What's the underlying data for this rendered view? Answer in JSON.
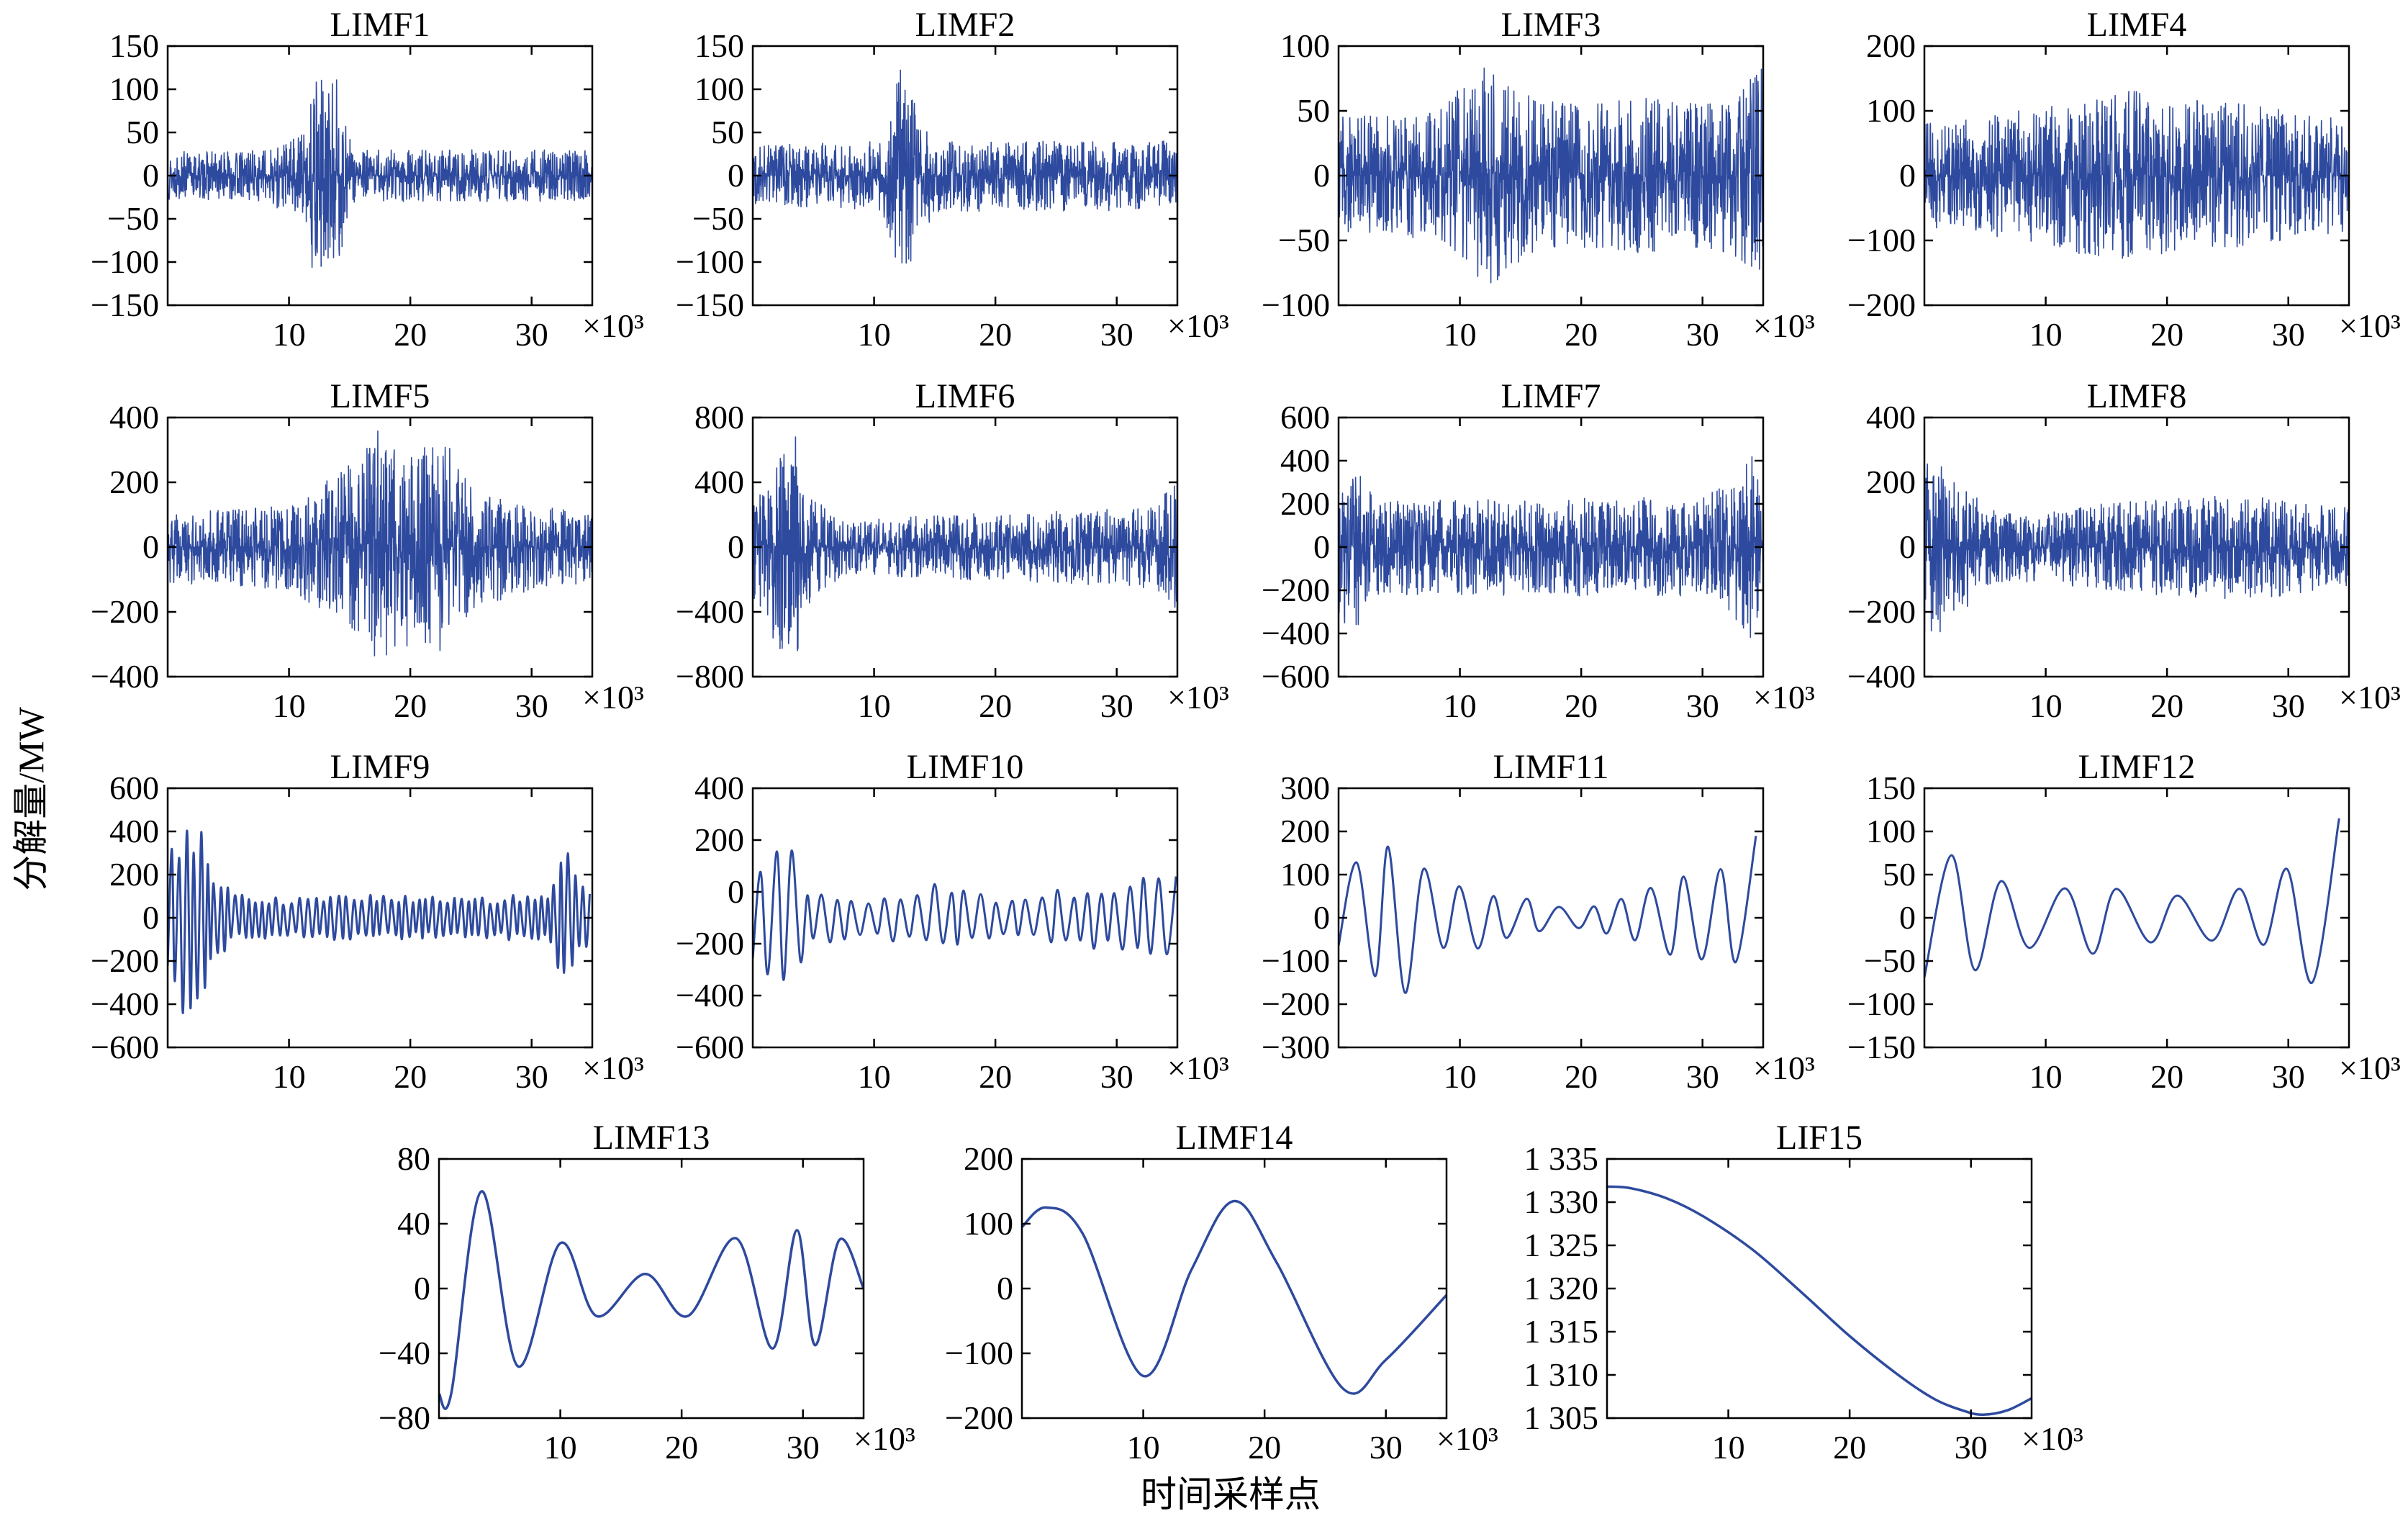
{
  "figure": {
    "ylabel": "分解量/MW",
    "xlabel": "时间采样点",
    "series_color": "#2e4a9e"
  },
  "chart_data": [
    {
      "type": "line",
      "title": "LIMF1",
      "x_range": [
        0,
        35000
      ],
      "ylim": [
        -150,
        150
      ],
      "yticks": [
        "150",
        "100",
        "50",
        "0",
        "−50",
        "−100",
        "−150"
      ],
      "xticks": [
        "10",
        "20",
        "30"
      ],
      "x_multiplier": "×10³",
      "signal": "noise",
      "envelope": [
        [
          0,
          28
        ],
        [
          8000,
          30
        ],
        [
          11500,
          55
        ],
        [
          12000,
          125
        ],
        [
          13000,
          110
        ],
        [
          14000,
          130
        ],
        [
          14600,
          60
        ],
        [
          15500,
          30
        ],
        [
          35000,
          30
        ]
      ]
    },
    {
      "type": "line",
      "title": "LIMF2",
      "x_range": [
        0,
        35000
      ],
      "ylim": [
        -150,
        150
      ],
      "yticks": [
        "150",
        "100",
        "50",
        "0",
        "−50",
        "−100",
        "−150"
      ],
      "xticks": [
        "10",
        "20",
        "30"
      ],
      "x_multiplier": "×10³",
      "signal": "noise",
      "envelope": [
        [
          0,
          35
        ],
        [
          10500,
          40
        ],
        [
          11500,
          80
        ],
        [
          12000,
          128
        ],
        [
          13000,
          100
        ],
        [
          14000,
          70
        ],
        [
          15000,
          42
        ],
        [
          35000,
          40
        ]
      ]
    },
    {
      "type": "line",
      "title": "LIMF3",
      "x_range": [
        0,
        35000
      ],
      "ylim": [
        -100,
        100
      ],
      "yticks": [
        "100",
        "50",
        "0",
        "−50",
        "−100"
      ],
      "xticks": [
        "10",
        "20",
        "30"
      ],
      "x_multiplier": "×10³",
      "signal": "noise",
      "envelope": [
        [
          0,
          45
        ],
        [
          8000,
          50
        ],
        [
          11500,
          80
        ],
        [
          12500,
          90
        ],
        [
          14000,
          75
        ],
        [
          16000,
          60
        ],
        [
          20000,
          55
        ],
        [
          25000,
          60
        ],
        [
          30000,
          55
        ],
        [
          33000,
          65
        ],
        [
          35000,
          90
        ]
      ]
    },
    {
      "type": "line",
      "title": "LIMF4",
      "x_range": [
        0,
        35000
      ],
      "ylim": [
        -200,
        200
      ],
      "yticks": [
        "200",
        "100",
        "0",
        "−100",
        "−200"
      ],
      "xticks": [
        "10",
        "20",
        "30"
      ],
      "x_multiplier": "×10³",
      "signal": "noise",
      "envelope": [
        [
          0,
          80
        ],
        [
          5000,
          90
        ],
        [
          10000,
          110
        ],
        [
          14000,
          125
        ],
        [
          17000,
          135
        ],
        [
          20000,
          120
        ],
        [
          25000,
          115
        ],
        [
          30000,
          100
        ],
        [
          35000,
          85
        ]
      ]
    },
    {
      "type": "line",
      "title": "LIMF5",
      "x_range": [
        0,
        35000
      ],
      "ylim": [
        -400,
        400
      ],
      "yticks": [
        "400",
        "200",
        "0",
        "−200",
        "−400"
      ],
      "xticks": [
        "10",
        "20",
        "30"
      ],
      "x_multiplier": "×10³",
      "signal": "noise",
      "envelope": [
        [
          0,
          110
        ],
        [
          10000,
          130
        ],
        [
          15000,
          260
        ],
        [
          17000,
          370
        ],
        [
          19000,
          300
        ],
        [
          23000,
          330
        ],
        [
          25000,
          200
        ],
        [
          30000,
          130
        ],
        [
          35000,
          110
        ]
      ]
    },
    {
      "type": "line",
      "title": "LIMF6",
      "x_range": [
        0,
        35000
      ],
      "ylim": [
        -800,
        800
      ],
      "yticks": [
        "800",
        "400",
        "0",
        "−400",
        "−800"
      ],
      "xticks": [
        "10",
        "20",
        "30"
      ],
      "x_multiplier": "×10³",
      "signal": "noise",
      "envelope": [
        [
          0,
          300
        ],
        [
          1500,
          650
        ],
        [
          3500,
          700
        ],
        [
          5000,
          300
        ],
        [
          8000,
          160
        ],
        [
          15000,
          200
        ],
        [
          25000,
          220
        ],
        [
          33000,
          260
        ],
        [
          35000,
          400
        ]
      ]
    },
    {
      "type": "line",
      "title": "LIMF7",
      "x_range": [
        0,
        35000
      ],
      "ylim": [
        -600,
        600
      ],
      "yticks": [
        "600",
        "400",
        "200",
        "0",
        "−200",
        "−400",
        "−600"
      ],
      "xticks": [
        "10",
        "20",
        "30"
      ],
      "x_multiplier": "×10³",
      "signal": "noise",
      "envelope": [
        [
          0,
          350
        ],
        [
          1500,
          380
        ],
        [
          3000,
          220
        ],
        [
          10000,
          220
        ],
        [
          20000,
          230
        ],
        [
          30000,
          230
        ],
        [
          32000,
          300
        ],
        [
          34000,
          460
        ],
        [
          35000,
          300
        ]
      ]
    },
    {
      "type": "line",
      "title": "LIMF8",
      "x_range": [
        0,
        35000
      ],
      "ylim": [
        -400,
        400
      ],
      "yticks": [
        "400",
        "200",
        "0",
        "−200",
        "−400"
      ],
      "xticks": [
        "10",
        "20",
        "30"
      ],
      "x_multiplier": "×10³",
      "signal": "noise",
      "envelope": [
        [
          0,
          260
        ],
        [
          1000,
          280
        ],
        [
          3000,
          200
        ],
        [
          6000,
          110
        ],
        [
          10000,
          110
        ],
        [
          15000,
          140
        ],
        [
          20000,
          150
        ],
        [
          25000,
          160
        ],
        [
          30000,
          150
        ],
        [
          35000,
          120
        ]
      ]
    },
    {
      "type": "line",
      "title": "LIMF9",
      "x_range": [
        0,
        35000
      ],
      "ylim": [
        -600,
        600
      ],
      "yticks": [
        "600",
        "400",
        "200",
        "0",
        "−200",
        "−400",
        "−600"
      ],
      "xticks": [
        "10",
        "20",
        "30"
      ],
      "x_multiplier": "×10³",
      "signal": "oscillation",
      "sep": 300,
      "envelope": [
        [
          0,
          300
        ],
        [
          1500,
          480
        ],
        [
          2500,
          450
        ],
        [
          4000,
          180
        ],
        [
          6000,
          110
        ],
        [
          10000,
          90
        ],
        [
          16000,
          110
        ],
        [
          25000,
          90
        ],
        [
          31500,
          120
        ],
        [
          32500,
          370
        ],
        [
          34000,
          180
        ],
        [
          35000,
          120
        ]
      ]
    },
    {
      "type": "line",
      "title": "LIMF10",
      "x_range": [
        0,
        35000
      ],
      "ylim": [
        -600,
        600
      ],
      "yticks": [
        "400",
        "200",
        "0",
        "−200",
        "−400",
        "−600"
      ],
      "xticks": [
        "10",
        "20",
        "30"
      ],
      "x_multiplier": "×10³",
      "signal": "oscillation",
      "sep": 620,
      "envelope": [
        [
          0,
          240
        ],
        [
          2000,
          350
        ],
        [
          3000,
          450
        ],
        [
          4500,
          150
        ],
        [
          10000,
          90
        ],
        [
          16000,
          170
        ],
        [
          20000,
          100
        ],
        [
          30000,
          160
        ],
        [
          33000,
          200
        ],
        [
          35000,
          250
        ]
      ]
    },
    {
      "type": "line",
      "title": "LIMF11",
      "x_range": [
        0,
        35000
      ],
      "ylim": [
        -300,
        300
      ],
      "yticks": [
        "300",
        "200",
        "100",
        "0",
        "−100",
        "−200",
        "−300"
      ],
      "xticks": [
        "10",
        "20",
        "30"
      ],
      "x_multiplier": "×10³",
      "signal": "oscillation",
      "sep": 1350,
      "envelope": [
        [
          0,
          80
        ],
        [
          3500,
          210
        ],
        [
          5000,
          200
        ],
        [
          8000,
          90
        ],
        [
          12000,
          70
        ],
        [
          19000,
          20
        ],
        [
          25000,
          70
        ],
        [
          30000,
          110
        ],
        [
          33000,
          150
        ],
        [
          35000,
          215
        ]
      ]
    },
    {
      "type": "line",
      "title": "LIMF12",
      "x_range": [
        0,
        35000
      ],
      "ylim": [
        -150,
        150
      ],
      "yticks": [
        "150",
        "100",
        "50",
        "0",
        "−50",
        "−100",
        "−150"
      ],
      "xticks": [
        "10",
        "20",
        "30"
      ],
      "x_multiplier": "×10³",
      "signal": "oscillation",
      "sep": 2400,
      "envelope": [
        [
          0,
          70
        ],
        [
          3000,
          75
        ],
        [
          8000,
          45
        ],
        [
          15000,
          45
        ],
        [
          22000,
          35
        ],
        [
          28000,
          40
        ],
        [
          32000,
          90
        ],
        [
          35000,
          130
        ]
      ]
    },
    {
      "type": "line",
      "title": "LIMF13",
      "x_range": [
        0,
        35000
      ],
      "ylim": [
        -80,
        80
      ],
      "yticks": [
        "80",
        "40",
        "0",
        "−40",
        "−80"
      ],
      "xticks": [
        "10",
        "20",
        "30"
      ],
      "x_multiplier": "×10³",
      "signal": "points",
      "x": [
        0,
        1000,
        3500,
        6500,
        10000,
        13000,
        17000,
        20500,
        24500,
        27500,
        29500,
        31000,
        33000,
        35000
      ],
      "y": [
        -65,
        -65,
        60,
        -48,
        28,
        -17,
        9,
        -17,
        31,
        -37,
        36,
        -35,
        30,
        0
      ]
    },
    {
      "type": "line",
      "title": "LIMF14",
      "x_range": [
        0,
        35000
      ],
      "ylim": [
        -200,
        200
      ],
      "yticks": [
        "200",
        "100",
        "0",
        "−100",
        "−200"
      ],
      "xticks": [
        "10",
        "20",
        "30"
      ],
      "x_multiplier": "×10³",
      "signal": "points",
      "x": [
        0,
        2000,
        5000,
        10000,
        14000,
        17500,
        21000,
        26500,
        30000,
        35000
      ],
      "y": [
        95,
        125,
        85,
        -135,
        30,
        135,
        40,
        -155,
        -110,
        -10
      ]
    },
    {
      "type": "line",
      "title": "LIF15",
      "x_range": [
        0,
        35000
      ],
      "ylim": [
        1305,
        1335
      ],
      "yticks": [
        "1 335",
        "1 330",
        "1 325",
        "1 320",
        "1 315",
        "1 310",
        "1 305"
      ],
      "xticks": [
        "10",
        "20",
        "30"
      ],
      "x_multiplier": "×10³",
      "signal": "points",
      "x": [
        0,
        2000,
        5000,
        8000,
        12000,
        16000,
        20000,
        24000,
        27000,
        29500,
        31000,
        33000,
        35000
      ],
      "y": [
        1331.8,
        1331.6,
        1330.4,
        1328.3,
        1324.5,
        1319.6,
        1314.5,
        1310,
        1307.2,
        1305.8,
        1305.4,
        1305.9,
        1307.3
      ]
    }
  ]
}
